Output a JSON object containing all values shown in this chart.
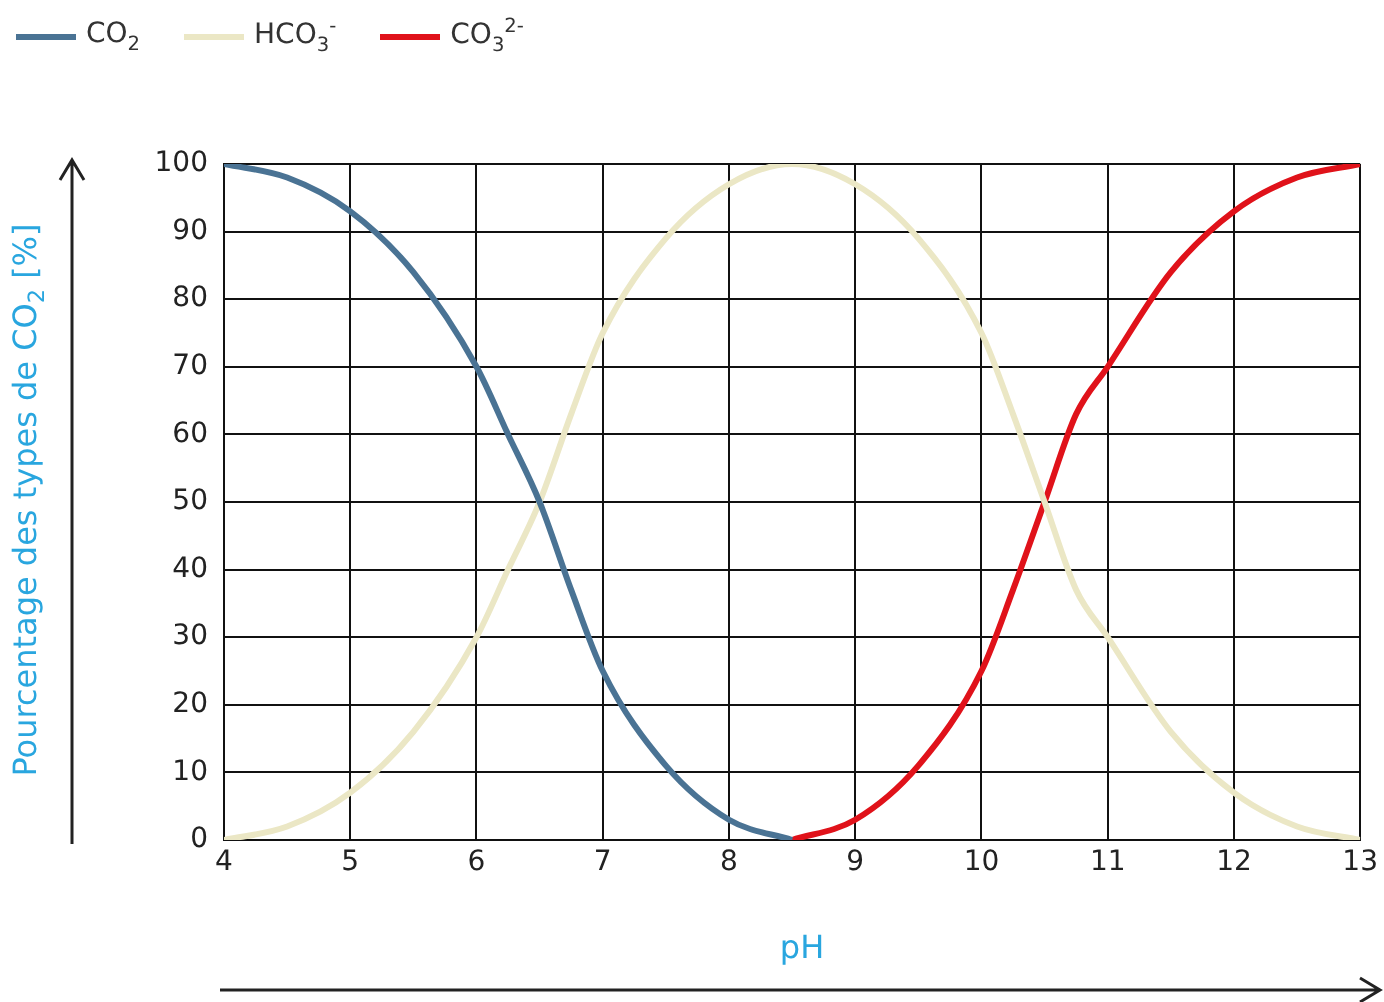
{
  "chart_data": {
    "type": "line",
    "xlabel": "pH",
    "ylabel": "Pourcentage des types de CO$_{2}$ [%]",
    "x": [
      4,
      4.5,
      5,
      5.5,
      6,
      6.25,
      6.5,
      6.75,
      7,
      7.5,
      8,
      8.5,
      9,
      9.5,
      10,
      10.25,
      10.5,
      10.75,
      11,
      11.5,
      12,
      12.5,
      13
    ],
    "series": [
      {
        "name": "CO$_{2}$",
        "color": "#4a7394",
        "values": [
          100,
          98,
          93,
          84,
          70,
          60,
          50,
          37,
          25,
          11,
          3,
          0,
          null,
          null,
          null,
          null,
          null,
          null,
          null,
          null,
          null,
          null,
          null
        ]
      },
      {
        "name": "HCO$_{3}$$^{-}$",
        "color": "#ebe7c5",
        "values": [
          0,
          2,
          7,
          16,
          30,
          40,
          50,
          63,
          75,
          89,
          97,
          100,
          97,
          89,
          75,
          63,
          50,
          37,
          30,
          16,
          7,
          2,
          0
        ]
      },
      {
        "name": "CO$_{3}$$^{2-}$",
        "color": "#e0121a",
        "values": [
          null,
          null,
          null,
          null,
          null,
          null,
          null,
          null,
          null,
          null,
          null,
          0,
          3,
          11,
          25,
          37,
          50,
          63,
          70,
          84,
          93,
          98,
          100
        ]
      }
    ],
    "xlim": [
      4,
      13
    ],
    "xticks": [
      4,
      5,
      6,
      7,
      8,
      9,
      10,
      11,
      12,
      13
    ],
    "ylim": [
      0,
      100
    ],
    "yticks": [
      0,
      10,
      20,
      30,
      40,
      50,
      60,
      70,
      80,
      90,
      100
    ],
    "grid": true,
    "legend": "top left",
    "marker": "none",
    "line_style": "solid"
  }
}
